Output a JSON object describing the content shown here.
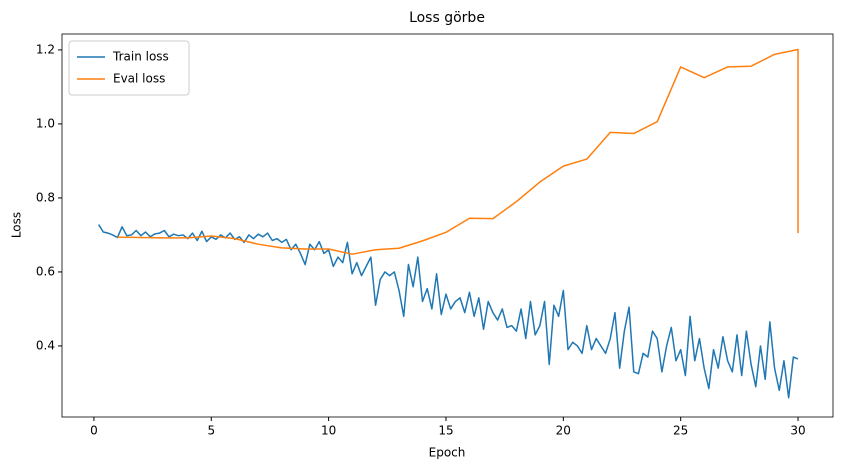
{
  "chart_data": {
    "type": "line",
    "title": "Loss görbe",
    "x_label": "Epoch",
    "y_label": "Loss",
    "xlim": [
      -1.36,
      31.49
    ],
    "ylim": [
      0.208,
      1.243
    ],
    "xticks": [
      0,
      5,
      10,
      15,
      20,
      25,
      30
    ],
    "yticks": [
      0.4,
      0.6,
      0.8,
      {
        "value": 1.0,
        "label": "1.0"
      },
      1.2
    ],
    "legend": "upper left",
    "series": [
      {
        "name": "Train loss",
        "color": "#1f77b4",
        "x": [
          0.2,
          0.4,
          0.6,
          0.8,
          1.0,
          1.2,
          1.4,
          1.6,
          1.8,
          2.0,
          2.2,
          2.4,
          2.6,
          2.8,
          3.0,
          3.2,
          3.4,
          3.6,
          3.8,
          4.0,
          4.2,
          4.4,
          4.6,
          4.8,
          5.0,
          5.2,
          5.4,
          5.6,
          5.8,
          6.0,
          6.2,
          6.4,
          6.6,
          6.8,
          7.0,
          7.2,
          7.4,
          7.6,
          7.8,
          8.0,
          8.2,
          8.4,
          8.6,
          8.8,
          9.0,
          9.2,
          9.4,
          9.6,
          9.8,
          10.0,
          10.2,
          10.4,
          10.6,
          10.8,
          11.0,
          11.2,
          11.4,
          11.6,
          11.8,
          12.0,
          12.2,
          12.4,
          12.6,
          12.8,
          13.0,
          13.2,
          13.4,
          13.6,
          13.8,
          14.0,
          14.2,
          14.4,
          14.6,
          14.8,
          15.0,
          15.2,
          15.4,
          15.6,
          15.8,
          16.0,
          16.2,
          16.4,
          16.6,
          16.8,
          17.0,
          17.2,
          17.4,
          17.6,
          17.8,
          18.0,
          18.2,
          18.4,
          18.6,
          18.8,
          19.0,
          19.2,
          19.4,
          19.6,
          19.8,
          20.0,
          20.2,
          20.4,
          20.6,
          20.8,
          21.0,
          21.2,
          21.4,
          21.6,
          21.8,
          22.0,
          22.2,
          22.4,
          22.6,
          22.8,
          23.0,
          23.2,
          23.4,
          23.6,
          23.8,
          24.0,
          24.2,
          24.4,
          24.6,
          24.8,
          25.0,
          25.2,
          25.4,
          25.6,
          25.8,
          26.0,
          26.2,
          26.4,
          26.6,
          26.8,
          27.0,
          27.2,
          27.4,
          27.6,
          27.8,
          28.0,
          28.2,
          28.4,
          28.6,
          28.8,
          29.0,
          29.2,
          29.4,
          29.6,
          29.8,
          30.0
        ],
        "values": [
          0.728,
          0.708,
          0.705,
          0.7,
          0.693,
          0.722,
          0.698,
          0.7,
          0.712,
          0.698,
          0.708,
          0.695,
          0.703,
          0.705,
          0.712,
          0.695,
          0.702,
          0.698,
          0.7,
          0.69,
          0.705,
          0.685,
          0.71,
          0.682,
          0.695,
          0.688,
          0.7,
          0.692,
          0.705,
          0.688,
          0.695,
          0.68,
          0.7,
          0.69,
          0.702,
          0.695,
          0.705,
          0.685,
          0.69,
          0.68,
          0.688,
          0.66,
          0.675,
          0.65,
          0.62,
          0.675,
          0.66,
          0.682,
          0.65,
          0.66,
          0.615,
          0.64,
          0.625,
          0.68,
          0.595,
          0.625,
          0.59,
          0.615,
          0.64,
          0.51,
          0.58,
          0.6,
          0.59,
          0.6,
          0.55,
          0.48,
          0.62,
          0.56,
          0.64,
          0.52,
          0.555,
          0.5,
          0.595,
          0.485,
          0.54,
          0.5,
          0.52,
          0.53,
          0.49,
          0.545,
          0.48,
          0.53,
          0.445,
          0.52,
          0.49,
          0.47,
          0.5,
          0.45,
          0.455,
          0.44,
          0.5,
          0.42,
          0.52,
          0.43,
          0.455,
          0.52,
          0.35,
          0.51,
          0.48,
          0.55,
          0.39,
          0.41,
          0.4,
          0.38,
          0.455,
          0.39,
          0.42,
          0.4,
          0.38,
          0.42,
          0.49,
          0.34,
          0.44,
          0.505,
          0.33,
          0.325,
          0.38,
          0.37,
          0.44,
          0.42,
          0.33,
          0.4,
          0.45,
          0.36,
          0.39,
          0.32,
          0.48,
          0.36,
          0.42,
          0.34,
          0.285,
          0.39,
          0.34,
          0.425,
          0.36,
          0.33,
          0.43,
          0.32,
          0.44,
          0.35,
          0.29,
          0.4,
          0.31,
          0.465,
          0.34,
          0.28,
          0.36,
          0.26,
          0.37,
          0.365
        ]
      },
      {
        "name": "Eval loss",
        "color": "#ff7f0e",
        "x": [
          1,
          2,
          3,
          4,
          5,
          6,
          7,
          8,
          9,
          10,
          11,
          12,
          13,
          14,
          15,
          16,
          17,
          18,
          19,
          20,
          21,
          22,
          23,
          24,
          25,
          26,
          27,
          28,
          29,
          30,
          30
        ],
        "values": [
          0.694,
          0.693,
          0.692,
          0.692,
          0.697,
          0.69,
          0.675,
          0.665,
          0.662,
          0.662,
          0.648,
          0.66,
          0.664,
          0.684,
          0.707,
          0.745,
          0.744,
          0.79,
          0.843,
          0.886,
          0.905,
          0.977,
          0.974,
          1.006,
          1.154,
          1.125,
          1.154,
          1.156,
          1.188,
          1.201,
          0.705
        ]
      }
    ]
  }
}
